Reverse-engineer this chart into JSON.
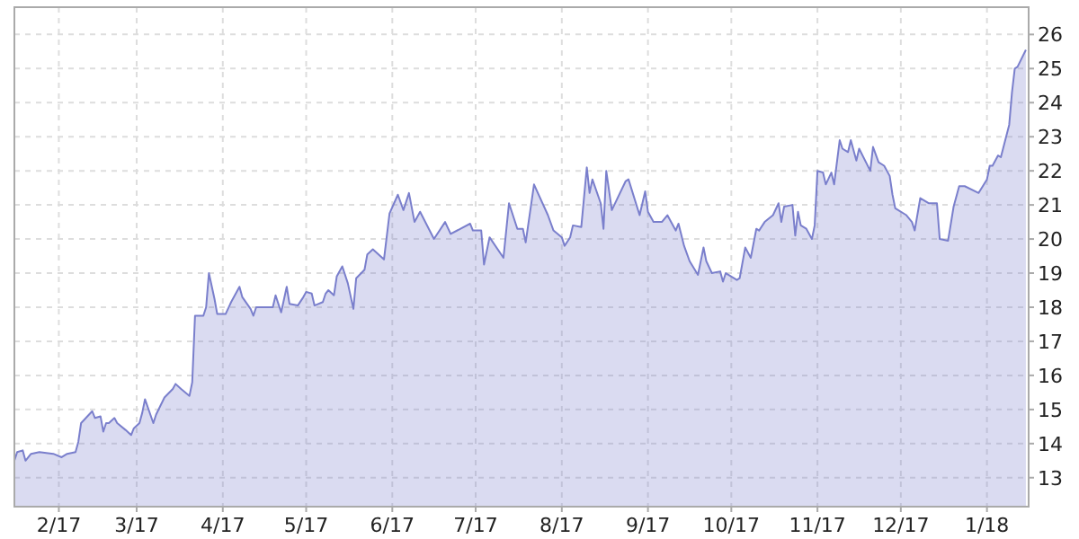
{
  "chart_data": {
    "type": "area",
    "x": [
      "2017-01-16",
      "2017-01-17",
      "2017-01-19",
      "2017-01-20",
      "2017-01-22",
      "2017-01-25",
      "2017-01-30",
      "2017-02-02",
      "2017-02-04",
      "2017-02-07",
      "2017-02-08",
      "2017-02-09",
      "2017-02-13",
      "2017-02-14",
      "2017-02-16",
      "2017-02-17",
      "2017-02-18",
      "2017-02-19",
      "2017-02-21",
      "2017-02-22",
      "2017-02-25",
      "2017-02-27",
      "2017-02-28",
      "2017-03-02",
      "2017-03-03",
      "2017-03-04",
      "2017-03-07",
      "2017-03-08",
      "2017-03-11",
      "2017-03-14",
      "2017-03-15",
      "2017-03-17",
      "2017-03-20",
      "2017-03-21",
      "2017-03-22",
      "2017-03-25",
      "2017-03-26",
      "2017-03-27",
      "2017-03-29",
      "2017-03-30",
      "2017-04-02",
      "2017-04-04",
      "2017-04-07",
      "2017-04-08",
      "2017-04-11",
      "2017-04-12",
      "2017-04-13",
      "2017-04-19",
      "2017-04-20",
      "2017-04-22",
      "2017-04-24",
      "2017-04-25",
      "2017-04-28",
      "2017-04-30",
      "2017-05-01",
      "2017-05-03",
      "2017-05-04",
      "2017-05-07",
      "2017-05-08",
      "2017-05-09",
      "2017-05-11",
      "2017-05-12",
      "2017-05-14",
      "2017-05-16",
      "2017-05-18",
      "2017-05-19",
      "2017-05-22",
      "2017-05-23",
      "2017-05-25",
      "2017-05-29",
      "2017-05-31",
      "2017-06-03",
      "2017-06-05",
      "2017-06-07",
      "2017-06-09",
      "2017-06-11",
      "2017-06-16",
      "2017-06-20",
      "2017-06-22",
      "2017-06-29",
      "2017-06-30",
      "2017-07-03",
      "2017-07-04",
      "2017-07-06",
      "2017-07-11",
      "2017-07-13",
      "2017-07-16",
      "2017-07-18",
      "2017-07-19",
      "2017-07-22",
      "2017-07-27",
      "2017-07-29",
      "2017-08-01",
      "2017-08-02",
      "2017-08-04",
      "2017-08-05",
      "2017-08-08",
      "2017-08-10",
      "2017-08-11",
      "2017-08-12",
      "2017-08-15",
      "2017-08-16",
      "2017-08-17",
      "2017-08-19",
      "2017-08-24",
      "2017-08-25",
      "2017-08-29",
      "2017-08-31",
      "2017-09-01",
      "2017-09-03",
      "2017-09-06",
      "2017-09-08",
      "2017-09-11",
      "2017-09-12",
      "2017-09-14",
      "2017-09-16",
      "2017-09-19",
      "2017-09-21",
      "2017-09-22",
      "2017-09-24",
      "2017-09-27",
      "2017-09-28",
      "2017-09-29",
      "2017-10-03",
      "2017-10-04",
      "2017-10-06",
      "2017-10-08",
      "2017-10-10",
      "2017-10-11",
      "2017-10-13",
      "2017-10-16",
      "2017-10-18",
      "2017-10-19",
      "2017-10-20",
      "2017-10-23",
      "2017-10-24",
      "2017-10-25",
      "2017-10-26",
      "2017-10-28",
      "2017-10-30",
      "2017-10-31",
      "2017-11-01",
      "2017-11-03",
      "2017-11-04",
      "2017-11-06",
      "2017-11-07",
      "2017-11-09",
      "2017-11-10",
      "2017-11-12",
      "2017-11-13",
      "2017-11-15",
      "2017-11-16",
      "2017-11-20",
      "2017-11-21",
      "2017-11-23",
      "2017-11-25",
      "2017-11-27",
      "2017-11-28",
      "2017-11-29",
      "2017-12-03",
      "2017-12-05",
      "2017-12-06",
      "2017-12-08",
      "2017-12-11",
      "2017-12-13",
      "2017-12-14",
      "2017-12-15",
      "2017-12-18",
      "2017-12-20",
      "2017-12-22",
      "2017-12-24",
      "2017-12-29",
      "2018-01-01",
      "2018-01-02",
      "2018-01-03",
      "2018-01-05",
      "2018-01-06",
      "2018-01-09",
      "2018-01-10",
      "2018-01-11",
      "2018-01-12",
      "2018-01-15"
    ],
    "series": [
      {
        "color": "#7a7fcc",
        "values": [
          13.5,
          13.75,
          13.8,
          13.5,
          13.7,
          13.75,
          13.7,
          13.6,
          13.7,
          13.75,
          14.05,
          14.6,
          14.95,
          14.75,
          14.8,
          14.35,
          14.6,
          14.6,
          14.75,
          14.6,
          14.4,
          14.25,
          14.45,
          14.6,
          14.9,
          15.3,
          14.6,
          14.85,
          15.35,
          15.6,
          15.75,
          15.6,
          15.4,
          15.8,
          17.75,
          17.75,
          18.0,
          19.0,
          18.25,
          17.8,
          17.8,
          18.15,
          18.6,
          18.3,
          17.95,
          17.75,
          18.0,
          18.0,
          18.35,
          17.85,
          18.6,
          18.1,
          18.05,
          18.3,
          18.45,
          18.4,
          18.05,
          18.15,
          18.4,
          18.5,
          18.35,
          18.9,
          19.2,
          18.7,
          17.95,
          18.85,
          19.1,
          19.55,
          19.7,
          19.4,
          20.75,
          21.3,
          20.85,
          21.35,
          20.5,
          20.8,
          20.0,
          20.5,
          20.15,
          20.45,
          20.25,
          20.25,
          19.25,
          20.05,
          19.45,
          21.05,
          20.3,
          20.3,
          19.9,
          21.6,
          20.7,
          20.25,
          20.05,
          19.8,
          20.05,
          20.4,
          20.35,
          22.1,
          21.35,
          21.75,
          21.05,
          20.3,
          22.0,
          20.85,
          21.7,
          21.75,
          20.7,
          21.4,
          20.8,
          20.5,
          20.5,
          20.7,
          20.25,
          20.45,
          19.8,
          19.35,
          18.95,
          19.75,
          19.35,
          19.0,
          19.05,
          18.75,
          19.0,
          18.8,
          18.85,
          19.75,
          19.45,
          20.3,
          20.25,
          20.5,
          20.7,
          21.05,
          20.5,
          20.95,
          21.0,
          20.1,
          20.8,
          20.4,
          20.3,
          20.0,
          20.4,
          22.0,
          21.95,
          21.6,
          21.95,
          21.6,
          22.9,
          22.65,
          22.55,
          22.9,
          22.3,
          22.65,
          22.0,
          22.7,
          22.25,
          22.15,
          21.85,
          21.3,
          20.9,
          20.7,
          20.5,
          20.25,
          21.2,
          21.05,
          21.05,
          21.05,
          20.0,
          19.95,
          20.95,
          21.55,
          21.55,
          21.35,
          21.75,
          22.15,
          22.15,
          22.45,
          22.4,
          23.35,
          24.3,
          25.0,
          25.05,
          25.55
        ]
      }
    ],
    "xlim": [
      "2017-01-16",
      "2018-01-16"
    ],
    "xticks": [
      {
        "value": "2017-02-01",
        "label": "2/17"
      },
      {
        "value": "2017-03-01",
        "label": "3/17"
      },
      {
        "value": "2017-04-01",
        "label": "4/17"
      },
      {
        "value": "2017-05-01",
        "label": "5/17"
      },
      {
        "value": "2017-06-01",
        "label": "6/17"
      },
      {
        "value": "2017-07-01",
        "label": "7/17"
      },
      {
        "value": "2017-08-01",
        "label": "8/17"
      },
      {
        "value": "2017-09-01",
        "label": "9/17"
      },
      {
        "value": "2017-10-01",
        "label": "10/17"
      },
      {
        "value": "2017-11-01",
        "label": "11/17"
      },
      {
        "value": "2017-12-01",
        "label": "12/17"
      },
      {
        "value": "2018-01-01",
        "label": "1/18"
      }
    ],
    "ylim": [
      12.15,
      26.8
    ],
    "yticks": [
      13,
      14,
      15,
      16,
      17,
      18,
      19,
      20,
      21,
      22,
      23,
      24,
      25,
      26
    ],
    "grid": true
  }
}
